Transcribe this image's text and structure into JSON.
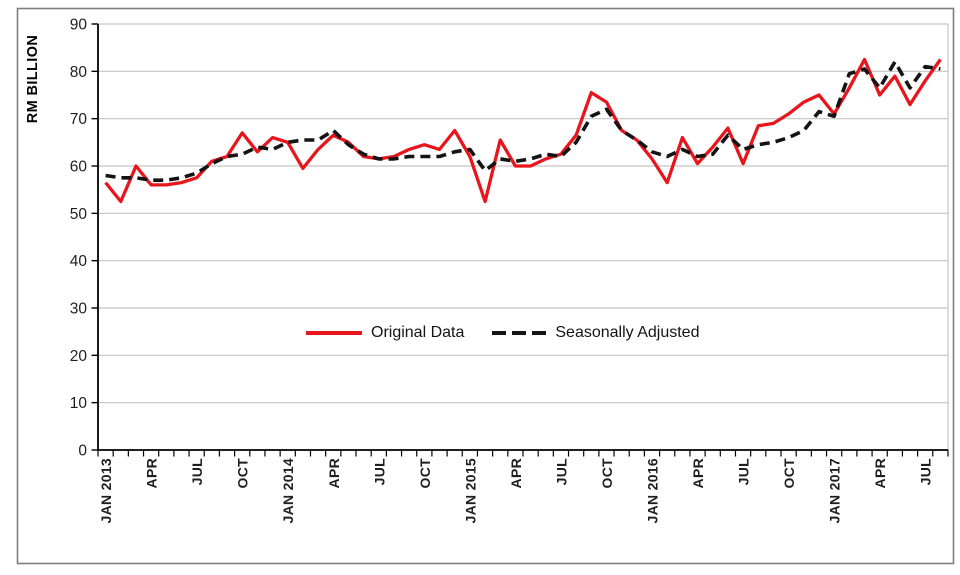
{
  "figure": {
    "ylabel": "RM BILLION",
    "legend": [
      {
        "label": "Original Data",
        "style": "solid",
        "color": "#e8151d"
      },
      {
        "label": "Seasonally Adjusted",
        "style": "dashed",
        "color": "#141414"
      }
    ]
  },
  "chart_data": {
    "type": "line",
    "title": "",
    "xlabel": "",
    "ylabel": "RM BILLION",
    "ylim": [
      0,
      90
    ],
    "ytick_step": 10,
    "grid": "horizontal",
    "legend_position": "inside-center",
    "x_interval": "monthly",
    "x_start": "JAN 2013",
    "x_end": "AUG 2017",
    "x_tick_every": 3,
    "x_tick_labels": [
      "JAN 2013",
      "APR",
      "JUL",
      "OCT",
      "JAN 2014",
      "APR",
      "JUL",
      "OCT",
      "JAN 2015",
      "APR",
      "JUL",
      "OCT",
      "JAN 2016",
      "APR",
      "JUL",
      "OCT",
      "JAN 2017",
      "APR",
      "JUL"
    ],
    "series": [
      {
        "name": "Original Data",
        "color": "#e8151d",
        "line_style": "solid",
        "values": [
          56.5,
          52.5,
          60,
          56,
          56,
          56.5,
          57.5,
          61,
          62,
          67,
          63,
          66,
          65,
          59.5,
          63.5,
          66.5,
          65,
          62,
          61.5,
          62,
          63.5,
          64.5,
          63.5,
          67.5,
          62,
          52.5,
          65.5,
          60,
          60,
          61.5,
          62.5,
          66.5,
          75.5,
          73.5,
          67.5,
          65.5,
          61.5,
          56.5,
          66,
          60.5,
          64,
          68,
          60.5,
          68.5,
          69,
          71,
          73.5,
          75,
          71,
          76.5,
          82.5,
          75,
          79,
          73,
          78,
          82.5
        ]
      },
      {
        "name": "Seasonally Adjusted",
        "color": "#141414",
        "line_style": "dashed",
        "values": [
          58,
          57.5,
          57.5,
          57,
          57,
          57.5,
          58.5,
          60.5,
          62,
          62.5,
          64,
          63.5,
          65,
          65.5,
          65.5,
          67.5,
          64.5,
          62.5,
          61.5,
          61.5,
          62,
          62,
          62,
          63,
          63.5,
          59,
          61.5,
          61,
          61.5,
          62.5,
          62,
          65,
          70.5,
          72,
          67.5,
          65.5,
          63,
          62,
          63.5,
          62,
          62.5,
          66.5,
          63.5,
          64.5,
          65,
          66,
          67.5,
          71.5,
          70.5,
          79.5,
          80.5,
          76.5,
          82,
          76.5,
          81,
          80.5
        ]
      }
    ]
  }
}
